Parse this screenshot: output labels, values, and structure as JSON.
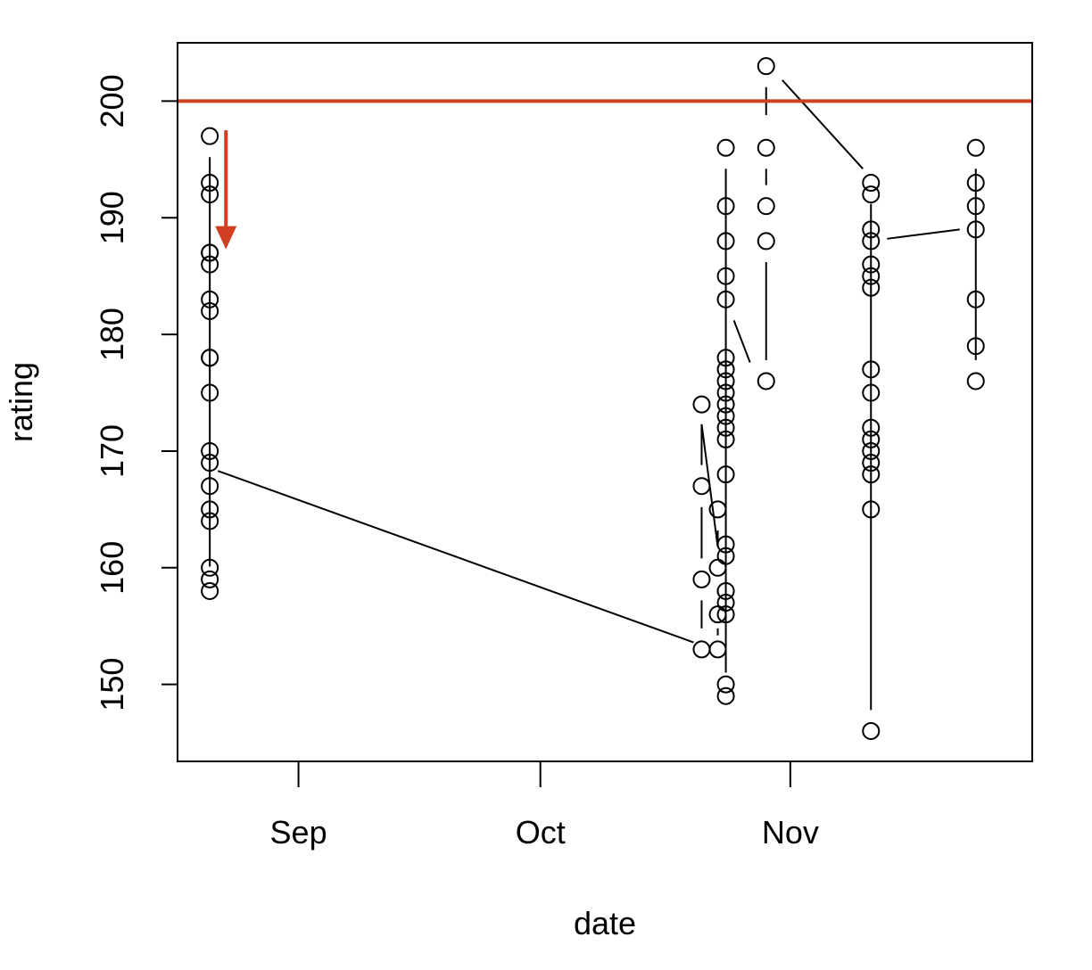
{
  "chart_data": {
    "type": "line",
    "title": "",
    "xlabel": "date",
    "ylabel": "rating",
    "x_ticks": [
      {
        "label": "Sep",
        "date": "2012-09-01"
      },
      {
        "label": "Oct",
        "date": "2012-10-01"
      },
      {
        "label": "Nov",
        "date": "2012-11-01"
      }
    ],
    "y_ticks": [
      150,
      160,
      170,
      180,
      190,
      200
    ],
    "xlim": [
      "2012-08-17",
      "2012-12-01"
    ],
    "ylim": [
      143.4,
      205.0
    ],
    "grid": false,
    "markers": "open circles connected by lines",
    "reference_line": {
      "y": 200,
      "color": "#d13f22"
    },
    "annotation_arrow": {
      "date": "2012-08-23",
      "y_from": 197.5,
      "y_to": 187.3,
      "color": "#d13f22",
      "direction": "down"
    },
    "points": [
      {
        "date": "2012-08-21",
        "y": 197
      },
      {
        "date": "2012-08-21",
        "y": 193
      },
      {
        "date": "2012-08-21",
        "y": 192
      },
      {
        "date": "2012-08-21",
        "y": 187
      },
      {
        "date": "2012-08-21",
        "y": 187
      },
      {
        "date": "2012-08-21",
        "y": 186
      },
      {
        "date": "2012-08-21",
        "y": 183
      },
      {
        "date": "2012-08-21",
        "y": 182
      },
      {
        "date": "2012-08-21",
        "y": 178
      },
      {
        "date": "2012-08-21",
        "y": 178
      },
      {
        "date": "2012-08-21",
        "y": 175
      },
      {
        "date": "2012-08-21",
        "y": 170
      },
      {
        "date": "2012-08-21",
        "y": 169
      },
      {
        "date": "2012-08-21",
        "y": 167
      },
      {
        "date": "2012-08-21",
        "y": 165
      },
      {
        "date": "2012-08-21",
        "y": 164
      },
      {
        "date": "2012-08-21",
        "y": 160
      },
      {
        "date": "2012-08-21",
        "y": 159
      },
      {
        "date": "2012-08-21",
        "y": 158
      },
      {
        "date": "2012-10-21",
        "y": 153
      },
      {
        "date": "2012-10-21",
        "y": 159
      },
      {
        "date": "2012-10-21",
        "y": 167
      },
      {
        "date": "2012-10-21",
        "y": 174
      },
      {
        "date": "2012-10-23",
        "y": 165
      },
      {
        "date": "2012-10-23",
        "y": 160
      },
      {
        "date": "2012-10-23",
        "y": 156
      },
      {
        "date": "2012-10-23",
        "y": 153
      },
      {
        "date": "2012-10-24",
        "y": 196
      },
      {
        "date": "2012-10-24",
        "y": 191
      },
      {
        "date": "2012-10-24",
        "y": 188
      },
      {
        "date": "2012-10-24",
        "y": 185
      },
      {
        "date": "2012-10-24",
        "y": 183
      },
      {
        "date": "2012-10-24",
        "y": 178
      },
      {
        "date": "2012-10-24",
        "y": 177
      },
      {
        "date": "2012-10-24",
        "y": 176
      },
      {
        "date": "2012-10-24",
        "y": 175
      },
      {
        "date": "2012-10-24",
        "y": 174
      },
      {
        "date": "2012-10-24",
        "y": 173
      },
      {
        "date": "2012-10-24",
        "y": 172
      },
      {
        "date": "2012-10-24",
        "y": 171
      },
      {
        "date": "2012-10-24",
        "y": 168
      },
      {
        "date": "2012-10-24",
        "y": 162
      },
      {
        "date": "2012-10-24",
        "y": 161
      },
      {
        "date": "2012-10-24",
        "y": 158
      },
      {
        "date": "2012-10-24",
        "y": 157
      },
      {
        "date": "2012-10-24",
        "y": 156
      },
      {
        "date": "2012-10-24",
        "y": 150
      },
      {
        "date": "2012-10-24",
        "y": 149
      },
      {
        "date": "2012-10-29",
        "y": 203
      },
      {
        "date": "2012-10-29",
        "y": 196
      },
      {
        "date": "2012-10-29",
        "y": 191
      },
      {
        "date": "2012-10-29",
        "y": 188
      },
      {
        "date": "2012-10-29",
        "y": 176
      },
      {
        "date": "2012-11-11",
        "y": 193
      },
      {
        "date": "2012-11-11",
        "y": 192
      },
      {
        "date": "2012-11-11",
        "y": 189
      },
      {
        "date": "2012-11-11",
        "y": 188
      },
      {
        "date": "2012-11-11",
        "y": 186
      },
      {
        "date": "2012-11-11",
        "y": 185
      },
      {
        "date": "2012-11-11",
        "y": 184
      },
      {
        "date": "2012-11-11",
        "y": 177
      },
      {
        "date": "2012-11-11",
        "y": 175
      },
      {
        "date": "2012-11-11",
        "y": 172
      },
      {
        "date": "2012-11-11",
        "y": 171
      },
      {
        "date": "2012-11-11",
        "y": 170
      },
      {
        "date": "2012-11-11",
        "y": 169
      },
      {
        "date": "2012-11-11",
        "y": 168
      },
      {
        "date": "2012-11-11",
        "y": 165
      },
      {
        "date": "2012-11-11",
        "y": 146
      },
      {
        "date": "2012-11-24",
        "y": 196
      },
      {
        "date": "2012-11-24",
        "y": 193
      },
      {
        "date": "2012-11-24",
        "y": 191
      },
      {
        "date": "2012-11-24",
        "y": 189
      },
      {
        "date": "2012-11-24",
        "y": 183
      },
      {
        "date": "2012-11-24",
        "y": 179
      },
      {
        "date": "2012-11-24",
        "y": 176
      }
    ],
    "connectors": [
      [
        {
          "date": "2012-08-21",
          "y": 195.2
        },
        {
          "date": "2012-08-21",
          "y": 160.1
        }
      ],
      [
        {
          "date": "2012-08-22",
          "y": 168.3
        },
        {
          "date": "2012-10-20",
          "y": 153.6
        }
      ],
      [
        {
          "date": "2012-10-21",
          "y": 172.3
        },
        {
          "date": "2012-10-21",
          "y": 168.8
        }
      ],
      [
        {
          "date": "2012-10-21",
          "y": 165.2
        },
        {
          "date": "2012-10-21",
          "y": 160.8
        }
      ],
      [
        {
          "date": "2012-10-21",
          "y": 157.2
        },
        {
          "date": "2012-10-21",
          "y": 154.8
        }
      ],
      [
        {
          "date": "2012-10-21",
          "y": 172.3
        },
        {
          "date": "2012-10-23",
          "y": 161.8
        }
      ],
      [
        {
          "date": "2012-10-23",
          "y": 163.2
        },
        {
          "date": "2012-10-23",
          "y": 161.8
        }
      ],
      [
        {
          "date": "2012-10-23",
          "y": 158.2
        },
        {
          "date": "2012-10-23",
          "y": 157.8
        }
      ],
      [
        {
          "date": "2012-10-23",
          "y": 154.2
        },
        {
          "date": "2012-10-23",
          "y": 154.8
        }
      ],
      [
        {
          "date": "2012-10-24",
          "y": 194.2
        },
        {
          "date": "2012-10-24",
          "y": 151.0
        }
      ],
      [
        {
          "date": "2012-10-25",
          "y": 181.2
        },
        {
          "date": "2012-10-27",
          "y": 177.6
        }
      ],
      [
        {
          "date": "2012-10-29",
          "y": 201.2
        },
        {
          "date": "2012-10-29",
          "y": 198.8
        }
      ],
      [
        {
          "date": "2012-10-29",
          "y": 194.2
        },
        {
          "date": "2012-10-29",
          "y": 192.8
        }
      ],
      [
        {
          "date": "2012-10-29",
          "y": 186.2
        },
        {
          "date": "2012-10-29",
          "y": 177.8
        }
      ],
      [
        {
          "date": "2012-10-31",
          "y": 201.8
        },
        {
          "date": "2012-11-10",
          "y": 194.2
        }
      ],
      [
        {
          "date": "2012-11-11",
          "y": 191.2
        },
        {
          "date": "2012-11-11",
          "y": 147.8
        }
      ],
      [
        {
          "date": "2012-11-13",
          "y": 188.2
        },
        {
          "date": "2012-11-22",
          "y": 189.0
        }
      ],
      [
        {
          "date": "2012-11-24",
          "y": 194.2
        },
        {
          "date": "2012-11-24",
          "y": 177.8
        }
      ]
    ]
  }
}
